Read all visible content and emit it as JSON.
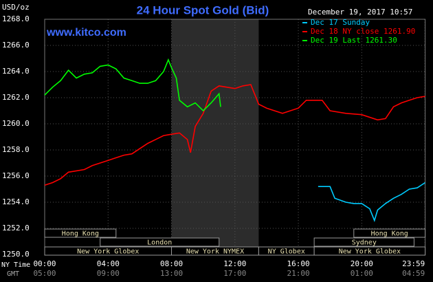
{
  "chart_data": {
    "type": "line",
    "title": "24 Hour Spot Gold (Bid)",
    "site": "www.kitco.com",
    "y_unit": "USD/oz",
    "timestamp": "December 19, 2017 10:57",
    "x_row_label": "NY Time",
    "x2_row_label": "GMT",
    "xlim": [
      0,
      24
    ],
    "ylim": [
      1250,
      1268
    ],
    "xticks": [
      {
        "value": 0,
        "label": "00:00"
      },
      {
        "value": 4,
        "label": "04:00"
      },
      {
        "value": 8,
        "label": "08:00"
      },
      {
        "value": 12,
        "label": "12:00"
      },
      {
        "value": 16,
        "label": "16:00"
      },
      {
        "value": 20,
        "label": "20:00"
      },
      {
        "value": 23.983,
        "label": "23:59"
      }
    ],
    "x2ticks": [
      "05:00",
      "09:00",
      "13:00",
      "17:00",
      "21:00",
      "01:00",
      "04:59"
    ],
    "yticks": [
      {
        "value": 1250,
        "label": "1250.0"
      },
      {
        "value": 1252,
        "label": "1252.0"
      },
      {
        "value": 1254,
        "label": "1254.0"
      },
      {
        "value": 1256,
        "label": "1256.0"
      },
      {
        "value": 1258,
        "label": "1258.0"
      },
      {
        "value": 1260,
        "label": "1260.0"
      },
      {
        "value": 1262,
        "label": "1262.0"
      },
      {
        "value": 1264,
        "label": "1264.0"
      },
      {
        "value": 1266,
        "label": "1266.0"
      },
      {
        "value": 1268,
        "label": "1268.0"
      }
    ],
    "grid": true,
    "series": [
      {
        "name": "Dec 17 Sunday",
        "color": "#00ccff",
        "x": [
          17.25,
          18,
          18.3,
          19,
          19.5,
          20,
          20.5,
          20.8,
          21,
          21.5,
          22,
          22.5,
          23,
          23.5,
          24
        ],
        "values": [
          1255.2,
          1255.2,
          1254.3,
          1254.0,
          1253.9,
          1253.9,
          1253.5,
          1252.6,
          1253.4,
          1253.9,
          1254.3,
          1254.6,
          1255.0,
          1255.1,
          1255.5
        ]
      },
      {
        "name": "Dec 18 NY close 1261.90",
        "color": "#ff0000",
        "x": [
          0,
          0.5,
          1,
          1.5,
          2,
          2.5,
          3,
          3.5,
          4,
          4.5,
          5,
          5.5,
          6,
          6.5,
          7,
          7.5,
          8,
          8.5,
          9,
          9.2,
          9.5,
          10,
          10.5,
          11,
          11.5,
          12,
          12.5,
          13,
          13.5,
          14,
          15,
          16,
          16.5,
          17,
          17.5,
          18,
          19,
          20,
          21,
          21.5,
          22,
          22.5,
          23,
          23.5,
          24
        ],
        "values": [
          1255.3,
          1255.5,
          1255.8,
          1256.3,
          1256.4,
          1256.5,
          1256.8,
          1257.0,
          1257.2,
          1257.4,
          1257.6,
          1257.7,
          1258.1,
          1258.5,
          1258.8,
          1259.1,
          1259.2,
          1259.3,
          1258.8,
          1257.8,
          1259.8,
          1260.8,
          1262.5,
          1262.9,
          1262.8,
          1262.7,
          1262.9,
          1263.0,
          1261.5,
          1261.2,
          1260.8,
          1261.2,
          1261.8,
          1261.8,
          1261.8,
          1261.0,
          1260.8,
          1260.7,
          1260.3,
          1260.4,
          1261.3,
          1261.6,
          1261.8,
          1262.0,
          1262.1
        ]
      },
      {
        "name": "Dec 19 Last 1261.30",
        "color": "#00ff00",
        "x": [
          0,
          0.5,
          1,
          1.5,
          2,
          2.5,
          3,
          3.5,
          4,
          4.5,
          5,
          5.5,
          6,
          6.5,
          7,
          7.5,
          7.8,
          8,
          8.3,
          8.5,
          9,
          9.5,
          10,
          10.5,
          11,
          11.1
        ],
        "values": [
          1262.2,
          1262.8,
          1263.3,
          1264.1,
          1263.5,
          1263.8,
          1263.9,
          1264.4,
          1264.5,
          1264.2,
          1263.5,
          1263.3,
          1263.1,
          1263.1,
          1263.3,
          1264.0,
          1264.9,
          1264.3,
          1263.5,
          1261.8,
          1261.3,
          1261.6,
          1261.0,
          1261.6,
          1262.3,
          1261.3
        ]
      }
    ],
    "sessions": [
      [
        {
          "name": "Hong Kong",
          "start": 0,
          "end": 4.5
        },
        {
          "name": "Hong Kong",
          "start": 19.5,
          "end": 24
        }
      ],
      [
        {
          "name": "London",
          "start": 3.5,
          "end": 11
        },
        {
          "name": "Sydney",
          "start": 17,
          "end": 23.3
        }
      ],
      [
        {
          "name": "New York Globex",
          "start": 0,
          "end": 8
        },
        {
          "name": "New York NYMEX",
          "start": 8,
          "end": 13.5,
          "shaded": true
        },
        {
          "name": "NY Globex",
          "start": 13.5,
          "end": 17
        },
        {
          "name": "New York Globex",
          "start": 17,
          "end": 24
        }
      ]
    ]
  }
}
